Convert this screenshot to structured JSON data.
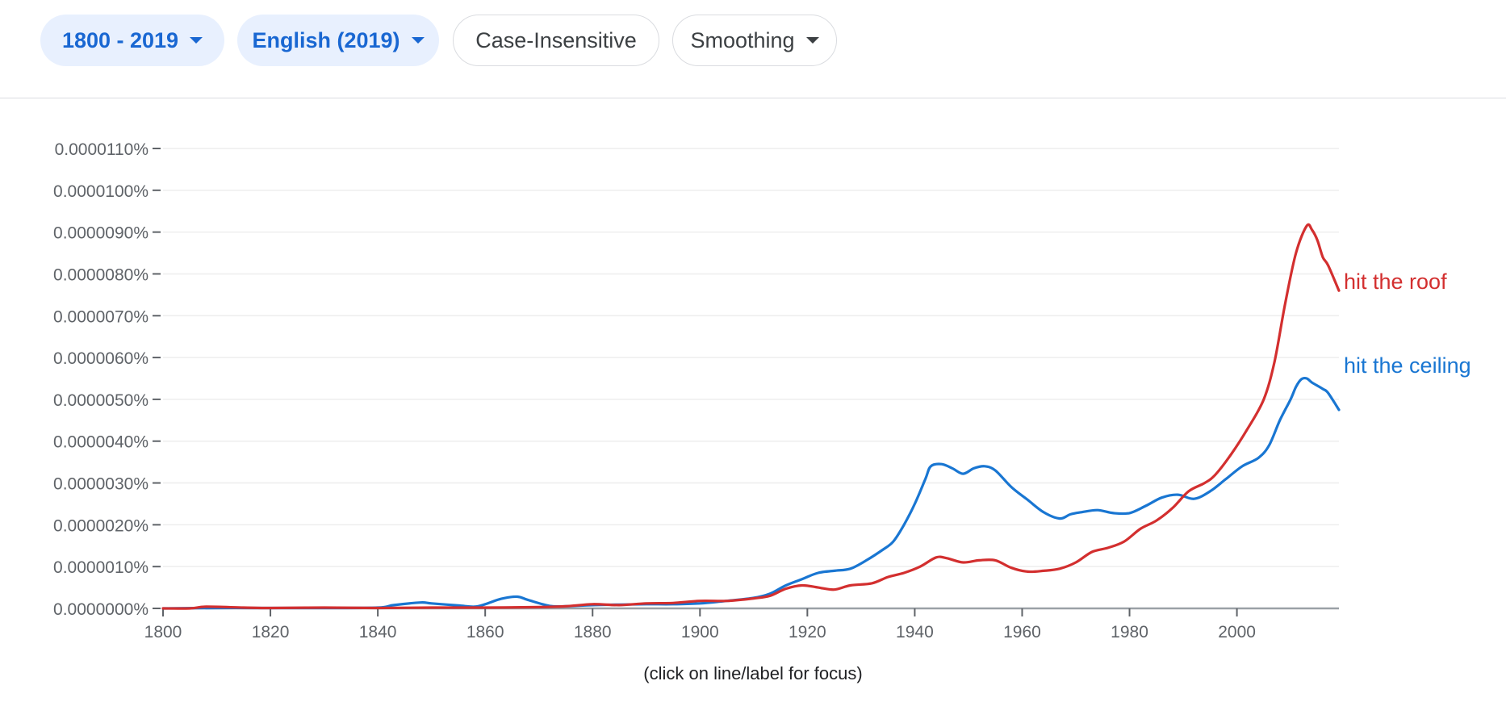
{
  "toolbar": {
    "year_range": "1800 - 2019",
    "corpus": "English (2019)",
    "case": "Case-Insensitive",
    "smoothing": "Smoothing"
  },
  "footer_note": "(click on line/label for focus)",
  "colors": {
    "accent": "#1967d2",
    "chip_fill": "#e8f0fe",
    "roof": "#d32f2f",
    "ceiling": "#1976d2"
  },
  "chart_data": {
    "type": "line",
    "title": "",
    "xlabel": "",
    "ylabel": "",
    "xlim": [
      1800,
      2019
    ],
    "ylim": [
      0,
      1.1e-05
    ],
    "grid": true,
    "legend": "line-end labels",
    "x_ticks": [
      1800,
      1820,
      1840,
      1860,
      1880,
      1900,
      1920,
      1940,
      1960,
      1980,
      2000
    ],
    "x_tick_labels": [
      "1800",
      "1820",
      "1840",
      "1860",
      "1880",
      "1900",
      "1920",
      "1940",
      "1960",
      "1980",
      "2000"
    ],
    "y_ticks": [
      0,
      1e-06,
      2e-06,
      3e-06,
      4e-06,
      5e-06,
      6e-06,
      7e-06,
      8e-06,
      9e-06,
      1e-05,
      1.1e-05
    ],
    "y_tick_labels": [
      "0.0000000%",
      "0.0000010%",
      "0.0000020%",
      "0.0000030%",
      "0.0000040%",
      "0.0000050%",
      "0.0000060%",
      "0.0000070%",
      "0.0000080%",
      "0.0000090%",
      "0.0000100%",
      "0.0000110%"
    ],
    "series": [
      {
        "name": "hit the roof",
        "color": "#d32f2f",
        "points": [
          [
            1800,
            0.0
          ],
          [
            1805,
            0.0
          ],
          [
            1808,
            4e-08
          ],
          [
            1815,
            2e-08
          ],
          [
            1820,
            1e-08
          ],
          [
            1830,
            2e-08
          ],
          [
            1840,
            1e-08
          ],
          [
            1850,
            2e-08
          ],
          [
            1860,
            2e-08
          ],
          [
            1870,
            3e-08
          ],
          [
            1875,
            5e-08
          ],
          [
            1880,
            1e-07
          ],
          [
            1885,
            8e-08
          ],
          [
            1890,
            1.2e-07
          ],
          [
            1895,
            1.3e-07
          ],
          [
            1900,
            1.8e-07
          ],
          [
            1905,
            1.8e-07
          ],
          [
            1910,
            2.4e-07
          ],
          [
            1913,
            3e-07
          ],
          [
            1916,
            4.7e-07
          ],
          [
            1919,
            5.5e-07
          ],
          [
            1922,
            5e-07
          ],
          [
            1925,
            4.5e-07
          ],
          [
            1928,
            5.5e-07
          ],
          [
            1932,
            6e-07
          ],
          [
            1935,
            7.5e-07
          ],
          [
            1938,
            8.5e-07
          ],
          [
            1941,
            1e-06
          ],
          [
            1944,
            1.22e-06
          ],
          [
            1946,
            1.2e-06
          ],
          [
            1949,
            1.1e-06
          ],
          [
            1952,
            1.15e-06
          ],
          [
            1955,
            1.15e-06
          ],
          [
            1958,
            9.7e-07
          ],
          [
            1961,
            8.8e-07
          ],
          [
            1964,
            9e-07
          ],
          [
            1967,
            9.5e-07
          ],
          [
            1970,
            1.1e-06
          ],
          [
            1973,
            1.35e-06
          ],
          [
            1976,
            1.45e-06
          ],
          [
            1979,
            1.6e-06
          ],
          [
            1982,
            1.9e-06
          ],
          [
            1985,
            2.1e-06
          ],
          [
            1988,
            2.4e-06
          ],
          [
            1991,
            2.8e-06
          ],
          [
            1994,
            3e-06
          ],
          [
            1996,
            3.2e-06
          ],
          [
            1999,
            3.7e-06
          ],
          [
            2002,
            4.3e-06
          ],
          [
            2005,
            5e-06
          ],
          [
            2007,
            5.9e-06
          ],
          [
            2009,
            7.3e-06
          ],
          [
            2011,
            8.5e-06
          ],
          [
            2013,
            9.15e-06
          ],
          [
            2014,
            9.05e-06
          ],
          [
            2015,
            8.8e-06
          ],
          [
            2016,
            8.4e-06
          ],
          [
            2017,
            8.2e-06
          ],
          [
            2019,
            7.6e-06
          ]
        ]
      },
      {
        "name": "hit the ceiling",
        "color": "#1976d2",
        "points": [
          [
            1800,
            0.0
          ],
          [
            1810,
            1e-08
          ],
          [
            1820,
            1e-08
          ],
          [
            1830,
            1e-08
          ],
          [
            1840,
            2e-08
          ],
          [
            1843,
            8e-08
          ],
          [
            1848,
            1.4e-07
          ],
          [
            1850,
            1.2e-07
          ],
          [
            1855,
            7e-08
          ],
          [
            1858,
            4e-08
          ],
          [
            1860,
            1e-07
          ],
          [
            1863,
            2.3e-07
          ],
          [
            1866,
            2.8e-07
          ],
          [
            1868,
            2e-07
          ],
          [
            1872,
            6e-08
          ],
          [
            1875,
            5e-08
          ],
          [
            1880,
            8e-08
          ],
          [
            1885,
            9e-08
          ],
          [
            1890,
            1e-07
          ],
          [
            1895,
            1e-07
          ],
          [
            1900,
            1.2e-07
          ],
          [
            1905,
            1.8e-07
          ],
          [
            1910,
            2.5e-07
          ],
          [
            1913,
            3.5e-07
          ],
          [
            1916,
            5.5e-07
          ],
          [
            1919,
            7e-07
          ],
          [
            1922,
            8.5e-07
          ],
          [
            1925,
            9e-07
          ],
          [
            1928,
            9.5e-07
          ],
          [
            1931,
            1.15e-06
          ],
          [
            1934,
            1.4e-06
          ],
          [
            1936,
            1.6e-06
          ],
          [
            1938,
            2e-06
          ],
          [
            1940,
            2.5e-06
          ],
          [
            1942,
            3.1e-06
          ],
          [
            1943,
            3.4e-06
          ],
          [
            1945,
            3.45e-06
          ],
          [
            1947,
            3.35e-06
          ],
          [
            1949,
            3.22e-06
          ],
          [
            1951,
            3.35e-06
          ],
          [
            1953,
            3.4e-06
          ],
          [
            1955,
            3.3e-06
          ],
          [
            1958,
            2.9e-06
          ],
          [
            1961,
            2.6e-06
          ],
          [
            1964,
            2.3e-06
          ],
          [
            1967,
            2.15e-06
          ],
          [
            1969,
            2.25e-06
          ],
          [
            1971,
            2.3e-06
          ],
          [
            1974,
            2.35e-06
          ],
          [
            1977,
            2.28e-06
          ],
          [
            1980,
            2.28e-06
          ],
          [
            1983,
            2.45e-06
          ],
          [
            1986,
            2.65e-06
          ],
          [
            1989,
            2.72e-06
          ],
          [
            1992,
            2.62e-06
          ],
          [
            1995,
            2.8e-06
          ],
          [
            1998,
            3.1e-06
          ],
          [
            2001,
            3.4e-06
          ],
          [
            2004,
            3.6e-06
          ],
          [
            2006,
            3.9e-06
          ],
          [
            2008,
            4.5e-06
          ],
          [
            2010,
            5e-06
          ],
          [
            2011,
            5.3e-06
          ],
          [
            2012,
            5.48e-06
          ],
          [
            2013,
            5.5e-06
          ],
          [
            2014,
            5.4e-06
          ],
          [
            2016,
            5.25e-06
          ],
          [
            2017,
            5.15e-06
          ],
          [
            2019,
            4.75e-06
          ]
        ]
      }
    ]
  }
}
